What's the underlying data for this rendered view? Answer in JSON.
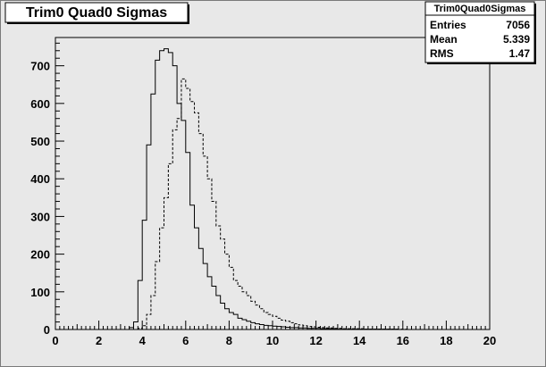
{
  "canvas": {
    "background": "#e8e8e8"
  },
  "chart_data": {
    "type": "histogram",
    "title": "Trim0 Quad0 Sigmas",
    "xlim": [
      0,
      20
    ],
    "ylim": [
      0,
      775
    ],
    "x_ticks": [
      0,
      2,
      4,
      6,
      8,
      10,
      12,
      14,
      16,
      18,
      20
    ],
    "y_ticks": [
      0,
      100,
      200,
      300,
      400,
      500,
      600,
      700
    ],
    "bin_width": 0.2,
    "grid": false,
    "series": [
      {
        "style": "solid",
        "color": "#000000",
        "x_start": 3.4,
        "values": [
          5,
          20,
          130,
          290,
          490,
          625,
          715,
          740,
          745,
          735,
          700,
          600,
          555,
          470,
          330,
          270,
          215,
          175,
          140,
          115,
          90,
          70,
          55,
          45,
          40,
          30,
          26,
          22,
          18,
          15,
          13,
          11,
          10,
          9,
          8,
          7,
          6,
          5,
          5,
          4,
          4,
          3,
          3,
          3,
          2,
          2,
          2,
          2,
          1,
          1,
          1,
          1,
          1,
          1,
          1,
          1,
          1,
          1,
          1,
          1,
          1,
          1,
          0,
          0,
          0
        ]
      },
      {
        "style": "dashed",
        "color": "#000000",
        "x_start": 3.8,
        "values": [
          3,
          10,
          40,
          90,
          180,
          270,
          350,
          440,
          530,
          560,
          665,
          640,
          605,
          575,
          520,
          460,
          400,
          340,
          275,
          240,
          200,
          165,
          130,
          115,
          100,
          90,
          75,
          65,
          55,
          45,
          40,
          35,
          30,
          25,
          22,
          18,
          15,
          12,
          10,
          8,
          7,
          6,
          5,
          4,
          4,
          3,
          3,
          2,
          2,
          2,
          2,
          2,
          1,
          1,
          1,
          1,
          1,
          1,
          1,
          1,
          1,
          1,
          0,
          0
        ]
      }
    ],
    "stats": {
      "name": "Trim0Quad0Sigmas",
      "rows": [
        {
          "label": "Entries",
          "value": "7056"
        },
        {
          "label": "Mean",
          "value": "5.339"
        },
        {
          "label": "RMS",
          "value": "1.47"
        }
      ]
    }
  }
}
